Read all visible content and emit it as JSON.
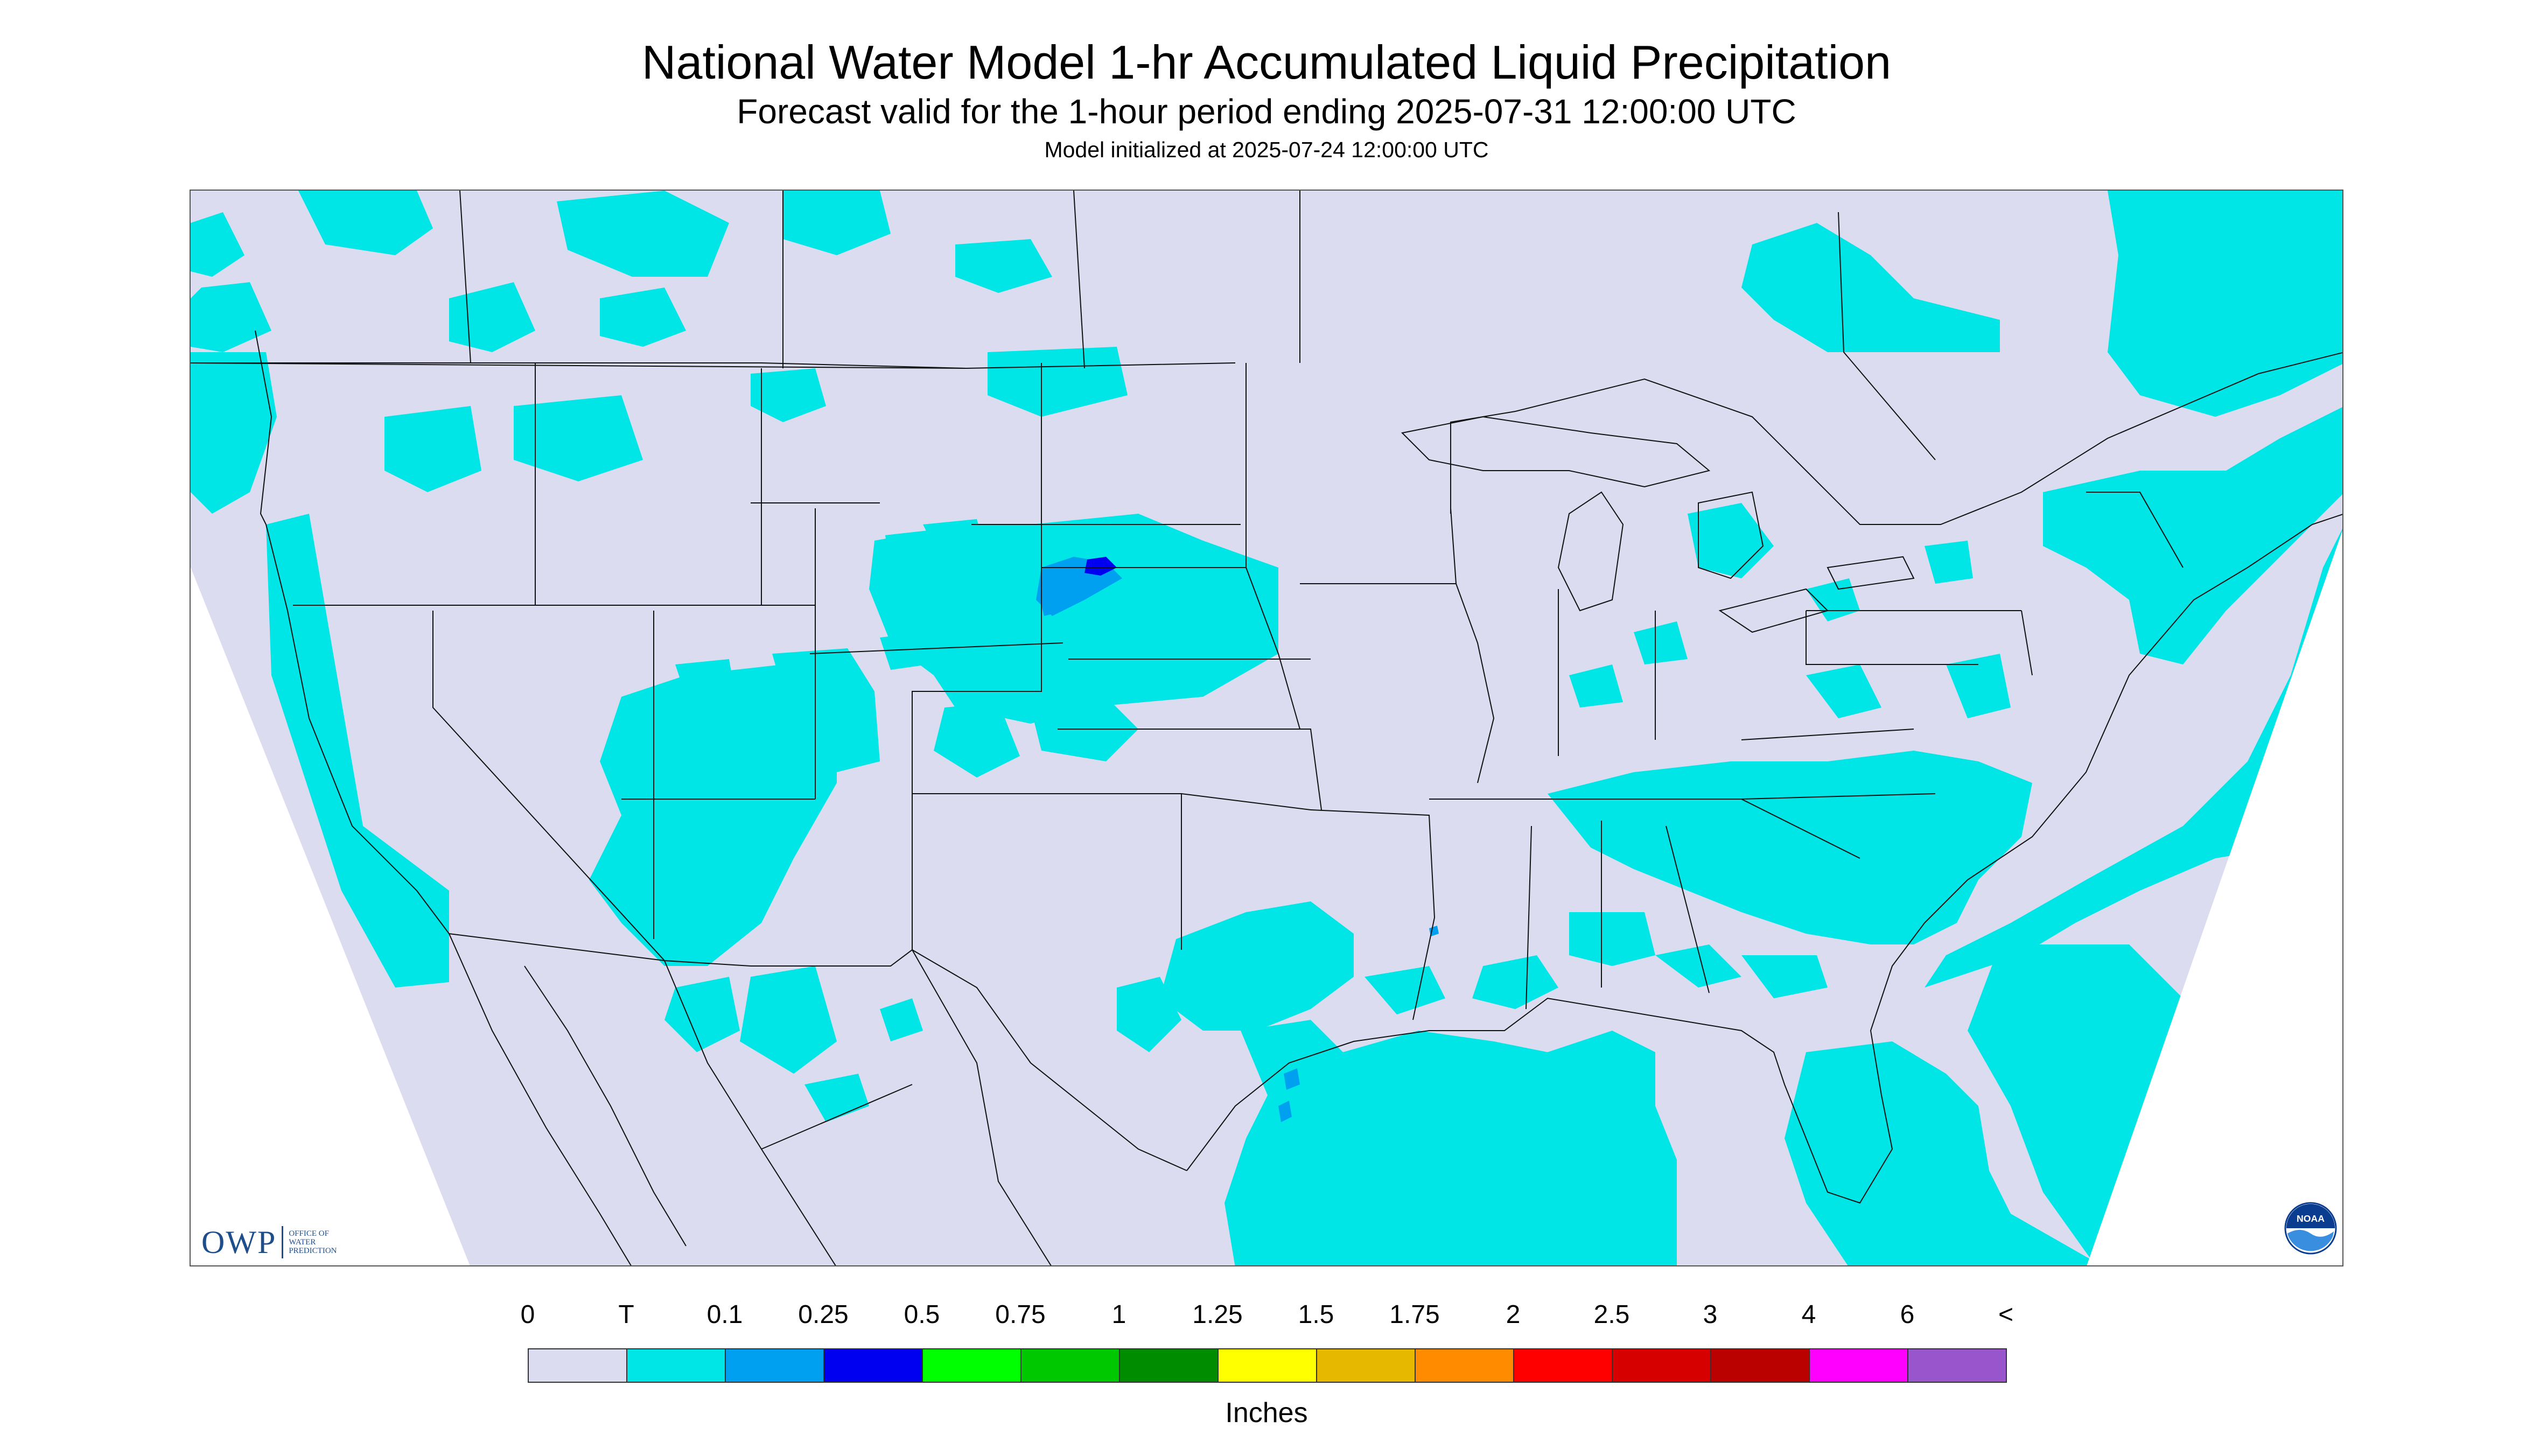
{
  "header": {
    "title": "National Water Model 1-hr Accumulated Liquid Precipitation",
    "subtitle": "Forecast valid for the 1-hour period ending 2025-07-31 12:00:00 UTC",
    "init": "Model initialized at 2025-07-24 12:00:00 UTC"
  },
  "logos": {
    "owp_mark": "OWP",
    "owp_text": "OFFICE OF\nWATER\nPREDICTION",
    "noaa_text": "NOAA"
  },
  "colors": {
    "no_precip": "#dcdcf0",
    "trace": "#00e5e5",
    "range_0_1": "#00a0f0",
    "range_0_25": "#0000f0",
    "outside_domain": "#ffffff",
    "boundaries": "#000000"
  },
  "legend": {
    "units": "Inches",
    "ticks": [
      "0",
      "T",
      "0.1",
      "0.25",
      "0.5",
      "0.75",
      "1",
      "1.25",
      "1.5",
      "1.75",
      "2",
      "2.5",
      "3",
      "4",
      "6",
      "<"
    ],
    "bins": [
      {
        "color": "#dcdcf0"
      },
      {
        "color": "#00e5e5"
      },
      {
        "color": "#00a0f0"
      },
      {
        "color": "#0000f0"
      },
      {
        "color": "#00ff00"
      },
      {
        "color": "#00c800"
      },
      {
        "color": "#008c00"
      },
      {
        "color": "#ffff00"
      },
      {
        "color": "#e6b800"
      },
      {
        "color": "#ff8c00"
      },
      {
        "color": "#ff0000"
      },
      {
        "color": "#d70000"
      },
      {
        "color": "#bb0000"
      },
      {
        "color": "#ff00ff"
      },
      {
        "color": "#9955cc"
      }
    ]
  }
}
